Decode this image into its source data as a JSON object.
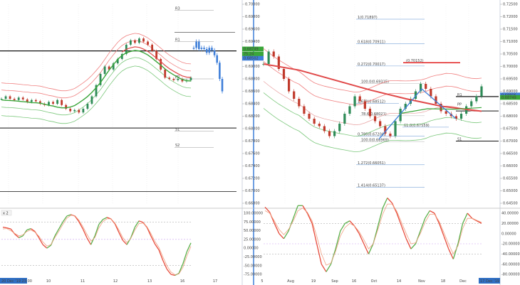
{
  "colors": {
    "ma_green": "#3aa63a",
    "ma_red": "#e04848",
    "band_red": "#f08080",
    "band_green": "#7cc87c",
    "candle_up": "#2e8b57",
    "candle_down": "#c0392b",
    "blue": "#3f7fd9",
    "fib_blue": "#7aa6d8",
    "osc_red": "#e74c3c",
    "osc_green": "#5ab04a",
    "osc_yellow": "#d9b400",
    "divider": "#3f7fd9"
  },
  "chart_data": [
    {
      "type": "line",
      "title": "",
      "x_ticks": [
        "20 Dec '19 23:00",
        "10",
        "11",
        "12",
        "13",
        "16",
        "17"
      ],
      "y_ticks": [
        "0.70000",
        "0.69800",
        "0.69600",
        "0.69400",
        "0.69200",
        "0.69000",
        "0.68800",
        "0.68600",
        "0.68400",
        "0.68200",
        "0.68000",
        "0.67800",
        "0.67600",
        "0.67400",
        "0.67200",
        "0.67000",
        "0.66800"
      ],
      "price_tags": [
        {
          "text": "0.68749",
          "color": "#3aa63a"
        },
        {
          "text": "75.24",
          "color": "#3aa63a"
        },
        {
          "text": "0.68502",
          "color": "#3f7fd9"
        }
      ],
      "levels": [
        "R1",
        "PP",
        "S1",
        "S2",
        "R3"
      ],
      "series": [
        {
          "values": [
            0.6848,
            0.6852,
            0.6848,
            0.6846,
            0.685,
            0.6847,
            0.6843,
            0.6846,
            0.6844,
            0.684,
            0.6838,
            0.6843,
            0.684,
            0.6846,
            0.6838,
            0.6832,
            0.6828,
            0.683,
            0.6826,
            0.6832,
            0.684,
            0.6852,
            0.687,
            0.6888,
            0.69,
            0.6895,
            0.6905,
            0.6912,
            0.692,
            0.6935,
            0.6942,
            0.6938,
            0.6945,
            0.694,
            0.6935,
            0.6925,
            0.6912,
            0.6895,
            0.6882,
            0.688,
            0.6878,
            0.688,
            0.6876,
            0.6878,
            0.6882
          ]
        },
        {
          "values": [
            0.693,
            0.694,
            0.6928,
            0.693,
            0.6928,
            0.6922,
            0.693,
            0.6926,
            0.6918,
            0.6906,
            0.688,
            0.686
          ]
        }
      ]
    },
    {
      "type": "line",
      "title": "",
      "x_ticks": [
        "5",
        "Aug",
        "19",
        "Sep",
        "16",
        "Oct",
        "14",
        "Nov",
        "18",
        "Dec",
        "17 Dec '19"
      ],
      "y_ticks": [
        "0.72500",
        "0.72000",
        "0.71500",
        "0.71000",
        "0.70500",
        "0.70000",
        "0.69500",
        "0.69000",
        "0.68500",
        "0.68000",
        "0.67500",
        "0.67000",
        "0.66500",
        "0.66000",
        "0.65500",
        "0.65000",
        "0.64500"
      ],
      "price_tags": [
        {
          "text": "0.68806",
          "color": "#3f7fd9"
        },
        {
          "text": "0.68749",
          "color": "#3aa63a"
        }
      ],
      "fib_labels": [
        "1(0.71897)",
        "0.618(0.70911)",
        "0.272(0.70017)",
        "100.0(0.69315)",
        "1.618(0.68512)",
        "78.6(0.68021)",
        "61.8(0.67559)",
        "0.786(0.67204)",
        "100.0(0.66969)",
        "1.272(0.66051)",
        "1.414(0.65137)",
        "(0.70152)"
      ],
      "levels": [
        "R1",
        "PP",
        "S1"
      ],
      "series": [
        {
          "values": [
            0.701,
            0.706,
            0.704,
            0.699,
            0.695,
            0.69,
            0.687,
            0.684,
            0.681,
            0.679,
            0.677,
            0.676,
            0.674,
            0.672,
            0.674,
            0.677,
            0.681,
            0.684,
            0.688,
            0.686,
            0.683,
            0.68,
            0.678,
            0.676,
            0.673,
            0.672,
            0.678,
            0.683,
            0.685,
            0.687,
            0.69,
            0.693,
            0.691,
            0.688,
            0.685,
            0.682,
            0.681,
            0.68,
            0.679,
            0.681,
            0.684,
            0.686,
            0.688,
            0.692
          ]
        }
      ]
    },
    {
      "type": "line",
      "title": "",
      "legend": "x 2",
      "y_ticks": [
        "100.00000",
        "75.00000",
        "50.00000",
        "25.00000",
        "0.00000",
        "-25.00000",
        "-50.00000",
        "-75.00000"
      ],
      "series": [
        {
          "values": [
            60,
            58,
            55,
            40,
            30,
            35,
            52,
            56,
            48,
            30,
            10,
            0,
            8,
            35,
            55,
            75,
            92,
            96,
            92,
            76,
            55,
            30,
            10,
            35,
            68,
            82,
            88,
            84,
            70,
            45,
            22,
            10,
            30,
            60,
            78,
            74,
            60,
            35,
            12,
            -5,
            -35,
            -60,
            -75,
            -78,
            -72,
            -45,
            -10,
            15
          ]
        },
        {
          "values": [
            55,
            56,
            50,
            42,
            35,
            38,
            48,
            52,
            46,
            34,
            18,
            6,
            10,
            30,
            48,
            68,
            86,
            94,
            93,
            80,
            62,
            40,
            20,
            30,
            58,
            76,
            84,
            84,
            72,
            52,
            30,
            16,
            28,
            52,
            70,
            72,
            62,
            42,
            20,
            2,
            -25,
            -50,
            -68,
            -76,
            -74,
            -55,
            -22,
            5
          ]
        }
      ]
    },
    {
      "type": "line",
      "title": "",
      "y_ticks": [
        "40.00000",
        "20.00000",
        "0.00000",
        "-20.00000",
        "-40.00000",
        "-60.00000",
        "-80.00000"
      ],
      "series": [
        {
          "values": [
            52,
            42,
            20,
            0,
            -10,
            5,
            30,
            55,
            55,
            40,
            20,
            -20,
            -60,
            -75,
            -60,
            -30,
            5,
            20,
            25,
            15,
            0,
            -20,
            -40,
            -20,
            15,
            50,
            70,
            60,
            40,
            15,
            -10,
            -30,
            -20,
            5,
            30,
            45,
            40,
            20,
            -5,
            -30,
            -50,
            -20,
            20,
            40,
            30,
            25,
            20
          ]
        },
        {
          "values": [
            45,
            40,
            25,
            8,
            -2,
            8,
            25,
            45,
            50,
            42,
            25,
            -5,
            -40,
            -62,
            -58,
            -35,
            -5,
            12,
            20,
            15,
            4,
            -12,
            -30,
            -20,
            8,
            38,
            58,
            58,
            44,
            22,
            0,
            -20,
            -18,
            0,
            22,
            38,
            38,
            24,
            2,
            -20,
            -40,
            -24,
            10,
            30,
            30,
            26,
            22
          ]
        }
      ]
    }
  ]
}
